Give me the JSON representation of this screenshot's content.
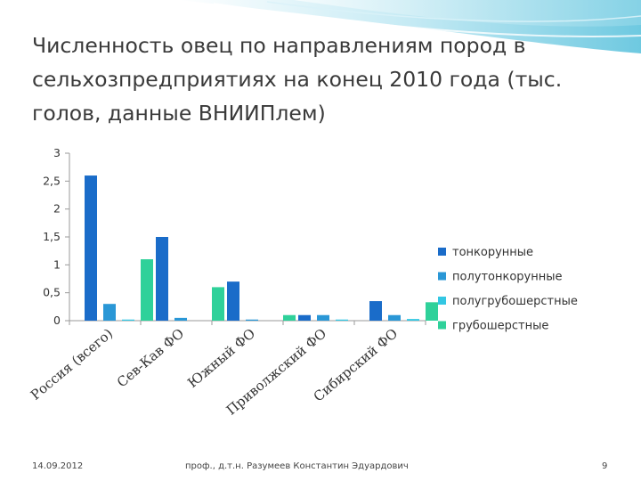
{
  "title": "Численность овец по направлениям пород в сельхозпредприятиях на конец 2010 года (тыс. голов, данные ВНИИПлем)",
  "footer": {
    "date": "14.09.2012",
    "author": "проф., д.т.н. Разумеев Константин Эдуардович",
    "page": "9"
  },
  "chart_data": {
    "type": "bar",
    "categories": [
      "Россия (всего)",
      "Сев-Кав ФО",
      "Южный ФО",
      "Приволжский ФО",
      "Сибирский ФО"
    ],
    "series": [
      {
        "name": "тонкорунные",
        "color": "#1a6cc9",
        "values": [
          2.6,
          1.5,
          0.7,
          0.1,
          0.35
        ]
      },
      {
        "name": "полутонкорунные",
        "color": "#2a97d6",
        "values": [
          0.3,
          0.05,
          0.02,
          0.1,
          0.1
        ]
      },
      {
        "name": "полугрубошерстные",
        "color": "#33c7e3",
        "values": [
          0.02,
          0.0,
          0.0,
          0.02,
          0.03
        ]
      },
      {
        "name": "грубошерстные",
        "color": "#2fd19a",
        "values": [
          1.1,
          0.6,
          0.1,
          0.0,
          0.33
        ]
      }
    ],
    "ylim": [
      0,
      3
    ],
    "yticks": [
      "0",
      "0,5",
      "1",
      "1,5",
      "2",
      "2,5",
      "3"
    ],
    "legend_position": "right",
    "grid": false
  }
}
